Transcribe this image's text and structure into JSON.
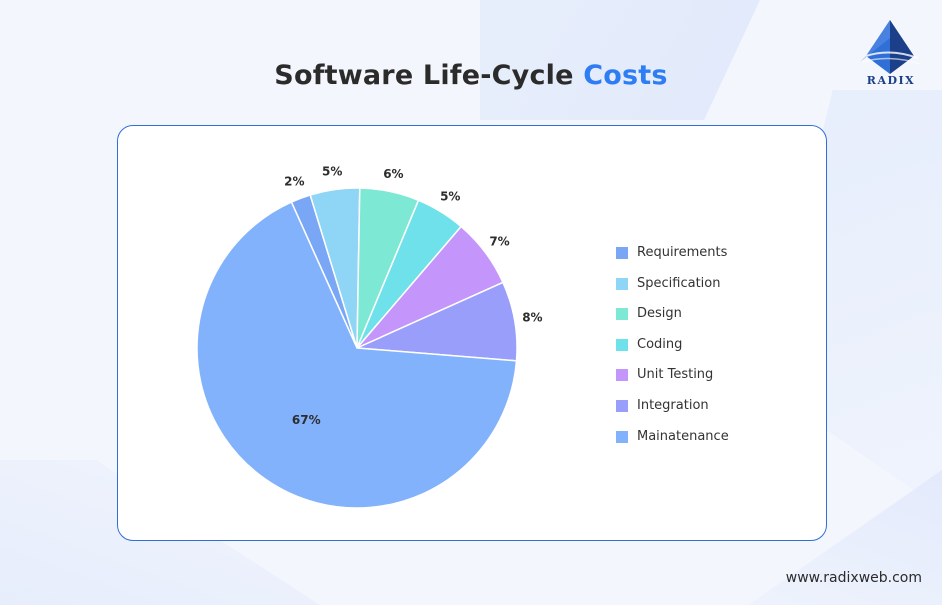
{
  "title": {
    "main": "Software Life-Cycle",
    "accent": "Costs"
  },
  "brand": {
    "logo_text": "RADIX",
    "footer_url": "www.radixweb.com"
  },
  "colors": {
    "accent": "#2f7df4",
    "card_border": "#2f6fd6",
    "logo": "#1c3f8a"
  },
  "chart_data": {
    "type": "pie",
    "slices": [
      {
        "name": "Requirements",
        "value": 2,
        "label": "2%",
        "color": "#7aa7f5"
      },
      {
        "name": "Specification",
        "value": 5,
        "label": "5%",
        "color": "#8fd6f6"
      },
      {
        "name": "Design",
        "value": 6,
        "label": "6%",
        "color": "#7de8d3"
      },
      {
        "name": "Coding",
        "value": 5,
        "label": "5%",
        "color": "#6fe1ea"
      },
      {
        "name": "Unit Testing",
        "value": 7,
        "label": "7%",
        "color": "#c495fb"
      },
      {
        "name": "Integration",
        "value": 8,
        "label": "8%",
        "color": "#989efa"
      },
      {
        "name": "Mainatenance",
        "value": 67,
        "label": "67%",
        "color": "#82b2fb"
      }
    ],
    "legend_position": "right"
  }
}
